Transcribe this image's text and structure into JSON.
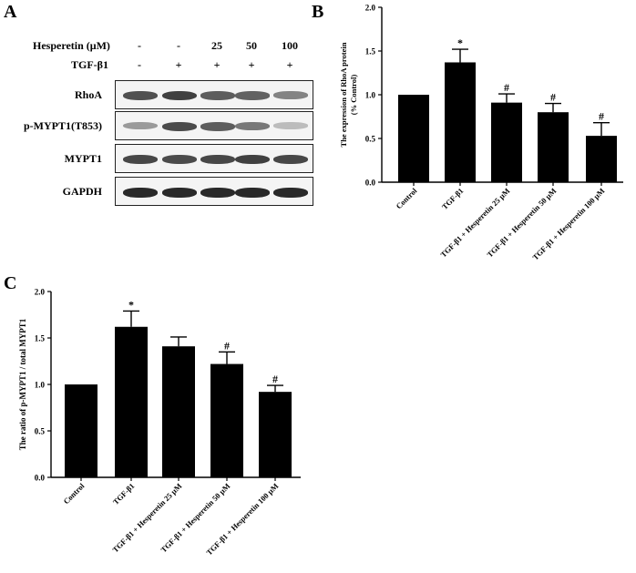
{
  "panels": {
    "a": "A",
    "b": "B",
    "c": "C"
  },
  "western_blot": {
    "hesperetin_label": "Hesperetin (μM)",
    "tgf_label": "TGF-β1",
    "hesperetin_values": [
      "-",
      "-",
      "25",
      "50",
      "100"
    ],
    "tgf_values": [
      "-",
      "+",
      "+",
      "+",
      "+"
    ],
    "rows": [
      {
        "label": "RhoA",
        "intensity": [
          0.78,
          0.85,
          0.72,
          0.7,
          0.55
        ]
      },
      {
        "label": "p-MYPT1(T853)",
        "intensity": [
          0.45,
          0.8,
          0.72,
          0.6,
          0.3
        ]
      },
      {
        "label": "MYPT1",
        "intensity": [
          0.82,
          0.8,
          0.82,
          0.85,
          0.82
        ]
      },
      {
        "label": "GAPDH",
        "intensity": [
          0.95,
          0.95,
          0.95,
          0.95,
          0.95
        ]
      }
    ]
  },
  "chart_data": [
    {
      "type": "bar",
      "title": "",
      "xlabel": "",
      "ylabel": "The expression of RhoA protein (%  Control)",
      "ylim": [
        0,
        2.0
      ],
      "yticks": [
        "0.0",
        "0.5",
        "1.0",
        "1.5",
        "2.0"
      ],
      "categories": [
        "Control",
        "TGF-β1",
        "TGF-β1 + Hesperetin 25 μM",
        "TGF-β1 + Hesperetin 50 μM",
        "TGF-β1 + Hesperetin 100 μM"
      ],
      "values": [
        1.0,
        1.37,
        0.91,
        0.8,
        0.53
      ],
      "errors": [
        0.0,
        0.15,
        0.1,
        0.1,
        0.15
      ],
      "significance": [
        "",
        "*",
        "#",
        "#",
        "#"
      ]
    },
    {
      "type": "bar",
      "title": "",
      "xlabel": "",
      "ylabel": "The ratio of p-MYPT1 / total MYPT1",
      "ylim": [
        0,
        2.0
      ],
      "yticks": [
        "0.0",
        "0.5",
        "1.0",
        "1.5",
        "2.0"
      ],
      "categories": [
        "Control",
        "TGF-β1",
        "TGF-β1 + Hesperetin 25 μM",
        "TGF-β1 + Hesperetin 50 μM",
        "TGF-β1 + Hesperetin 100 μM"
      ],
      "values": [
        1.0,
        1.62,
        1.41,
        1.22,
        0.92
      ],
      "errors": [
        0.0,
        0.17,
        0.1,
        0.13,
        0.07
      ],
      "significance": [
        "",
        "*",
        "",
        "#",
        "#"
      ]
    }
  ]
}
